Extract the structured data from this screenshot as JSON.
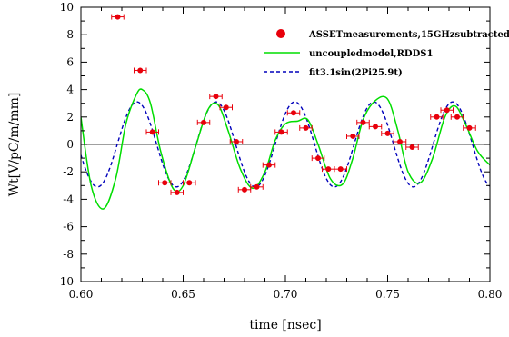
{
  "chart_data": {
    "type": "scatter",
    "title": "",
    "xlabel": "time [nsec]",
    "ylabel": "Wt[V/pC/m/mm]",
    "xlim": [
      0.6,
      0.8
    ],
    "ylim": [
      -10,
      10
    ],
    "xticks": [
      0.6,
      0.65,
      0.7,
      0.75,
      0.8
    ],
    "xtick_labels": [
      "0.60",
      "0.65",
      "0.70",
      "0.75",
      "0.80"
    ],
    "yticks": [
      -10,
      -8,
      -6,
      -4,
      -2,
      0,
      2,
      4,
      6,
      8,
      10
    ],
    "ytick_labels": [
      "-10",
      "-8",
      "-6",
      "-4",
      "-2",
      "0",
      "2",
      "4",
      "6",
      "8",
      "10"
    ],
    "grid": false,
    "legend_position": "top-right",
    "series": [
      {
        "name": "ASSETmeasurements,15GHzsubtracted",
        "kind": "points-with-xerror",
        "color": "#e8000b",
        "xerr": 0.003,
        "x": [
          0.618,
          0.629,
          0.635,
          0.641,
          0.647,
          0.653,
          0.66,
          0.666,
          0.671,
          0.676,
          0.68,
          0.686,
          0.692,
          0.698,
          0.704,
          0.71,
          0.716,
          0.721,
          0.727,
          0.733,
          0.738,
          0.744,
          0.75,
          0.756,
          0.762,
          0.774,
          0.779,
          0.784,
          0.79
        ],
        "y": [
          9.3,
          5.4,
          0.9,
          -2.8,
          -3.5,
          -2.8,
          1.6,
          3.5,
          2.7,
          0.2,
          -3.3,
          -3.1,
          -1.5,
          0.9,
          2.3,
          1.2,
          -1.0,
          -1.8,
          -1.8,
          0.6,
          1.6,
          1.3,
          0.8,
          0.2,
          -0.2,
          2.0,
          2.5,
          2.0,
          1.2
        ]
      },
      {
        "name": "uncoupledmodel,RDDS1",
        "kind": "line",
        "color": "#00dd00",
        "x": [
          0.6,
          0.605,
          0.611,
          0.617,
          0.622,
          0.627,
          0.63,
          0.634,
          0.639,
          0.645,
          0.65,
          0.656,
          0.662,
          0.667,
          0.672,
          0.678,
          0.684,
          0.69,
          0.695,
          0.7,
          0.706,
          0.711,
          0.716,
          0.722,
          0.728,
          0.733,
          0.738,
          0.744,
          0.75,
          0.755,
          0.76,
          0.766,
          0.772,
          0.778,
          0.783,
          0.788,
          0.794,
          0.8
        ],
        "y": [
          2.0,
          -3.0,
          -4.7,
          -2.5,
          1.5,
          3.6,
          4.0,
          3.0,
          -0.5,
          -3.2,
          -3.0,
          -0.2,
          2.5,
          2.9,
          1.0,
          -1.8,
          -3.2,
          -2.0,
          0.3,
          1.5,
          1.7,
          1.8,
          0.0,
          -2.5,
          -2.9,
          -1.0,
          1.8,
          3.2,
          3.3,
          1.0,
          -2.0,
          -2.8,
          -1.0,
          2.0,
          2.8,
          1.5,
          -0.5,
          -1.5
        ]
      },
      {
        "name": "fit3.1sin(2Pi25.9t)",
        "kind": "dashed-line",
        "color": "#0000bb",
        "amplitude": 3.1,
        "frequency": 25.9
      }
    ]
  }
}
